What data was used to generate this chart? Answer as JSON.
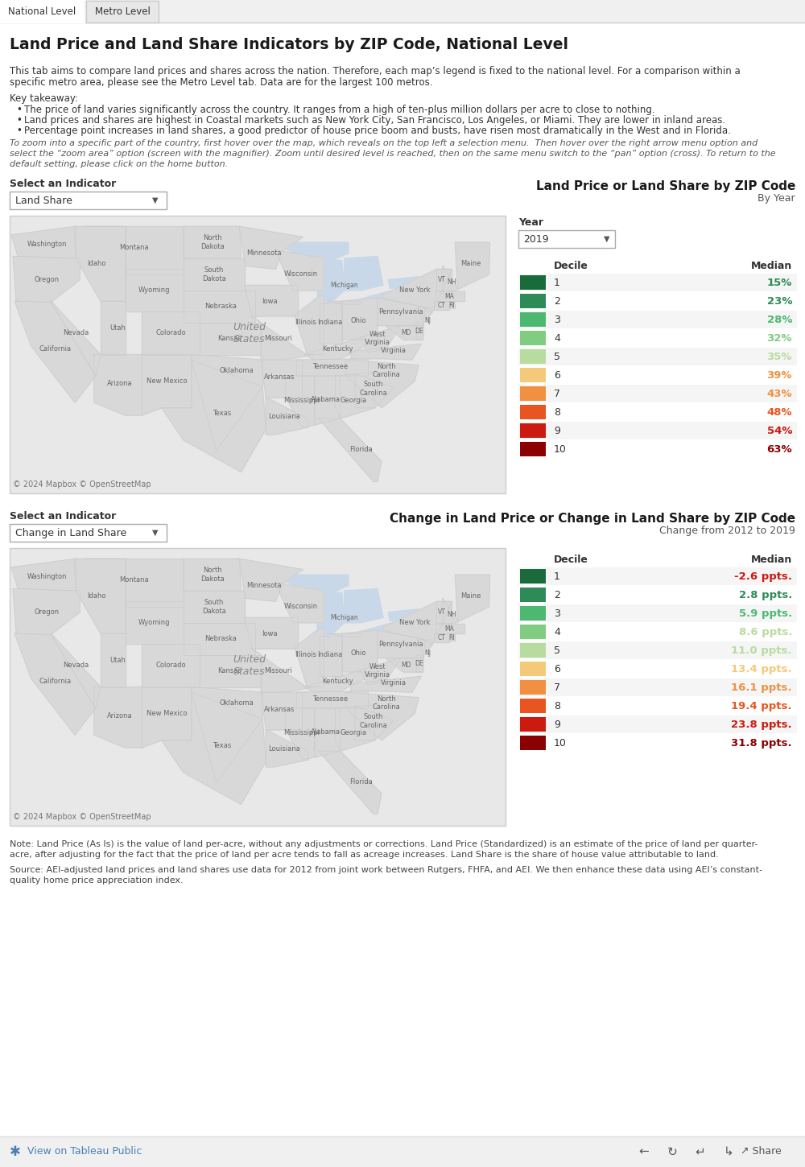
{
  "bg_color": "#f0f0f0",
  "page_bg": "#ffffff",
  "tab_active_bg": "#ffffff",
  "tab_inactive_bg": "#e8e8e8",
  "title": "Land Price and Land Share Indicators by ZIP Code, National Level",
  "tab1": "National Level",
  "tab2": "Metro Level",
  "intro_text": "This tab aims to compare land prices and shares across the nation. Therefore, each map’s legend is fixed to the national level. For a comparison within a\nspecific metro area, please see the Metro Level tab. Data are for the largest 100 metros.",
  "key_takeaway": "Key takeaway:",
  "bullets": [
    "The price of land varies significantly across the country. It ranges from a high of ten-plus million dollars per acre to close to nothing.",
    "Land prices and shares are highest in Coastal markets such as New York City, San Francisco, Los Angeles, or Miami. They are lower in inland areas.",
    "Percentage point increases in land shares, a good predictor of house price boom and busts, have risen most dramatically in the West and in Florida."
  ],
  "zoom_instruction": "To zoom into a specific part of the country, first hover over the map, which reveals on the top left a selection menu.  Then hover over the right arrow menu option and\nselect the “zoom area” option (screen with the magnifier). Zoom until desired level is reached, then on the same menu switch to the “pan” option (cross). To return to the\ndefault setting, please click on the home button.",
  "select_indicator_label": "Select an Indicator",
  "dropdown1_value": "Land Share",
  "map1_title": "Land Price or Land Share by ZIP Code",
  "map1_subtitle": "By Year",
  "year_label": "Year",
  "year_value": "2019",
  "decile_label": "Decile",
  "median_label": "Median",
  "deciles1": [
    1,
    2,
    3,
    4,
    5,
    6,
    7,
    8,
    9,
    10
  ],
  "medians1": [
    "15%",
    "23%",
    "28%",
    "32%",
    "35%",
    "39%",
    "43%",
    "48%",
    "54%",
    "63%"
  ],
  "colors1": [
    "#1a6b3c",
    "#2e8b57",
    "#4db870",
    "#80cc80",
    "#b8dca0",
    "#f5c97a",
    "#f09040",
    "#e85520",
    "#cc1a10",
    "#8b0000"
  ],
  "median_colors1": [
    "#2e8b57",
    "#2e8b57",
    "#4db870",
    "#80cc80",
    "#b8dca0",
    "#f09040",
    "#f09040",
    "#e85520",
    "#cc1a10",
    "#8b0000"
  ],
  "map1_copyright": "© 2024 Mapbox © OpenStreetMap",
  "select_indicator_label2": "Select an Indicator",
  "dropdown2_value": "Change in Land Share",
  "map2_title": "Change in Land Price or Change in Land Share by ZIP Code",
  "map2_subtitle": "Change from 2012 to 2019",
  "deciles2": [
    1,
    2,
    3,
    4,
    5,
    6,
    7,
    8,
    9,
    10
  ],
  "medians2": [
    "-2.6 ppts.",
    "2.8 ppts.",
    "5.9 ppts.",
    "8.6 ppts.",
    "11.0 ppts.",
    "13.4 ppts.",
    "16.1 ppts.",
    "19.4 ppts.",
    "23.8 ppts.",
    "31.8 ppts."
  ],
  "colors2": [
    "#1a6b3c",
    "#2e8b57",
    "#4db870",
    "#80cc80",
    "#b8dca0",
    "#f5c97a",
    "#f09040",
    "#e85520",
    "#cc1a10",
    "#8b0000"
  ],
  "median_colors2": [
    "#cc1a10",
    "#2e8b57",
    "#4db870",
    "#b8dca0",
    "#b8dca0",
    "#f5c97a",
    "#f09040",
    "#e85520",
    "#cc1a10",
    "#8b0000"
  ],
  "map2_copyright": "© 2024 Mapbox © OpenStreetMap",
  "note_text": "Note: Land Price (As Is) is the value of land per-acre, without any adjustments or corrections. Land Price (Standardized) is an estimate of the price of land per quarter-\nacre, after adjusting for the fact that the price of land per acre tends to fall as acreage increases. Land Share is the share of house value attributable to land.",
  "source_text": "Source: AEI-adjusted land prices and land shares use data for 2012 from joint work between Rutgers, FHFA, and AEI. We then enhance these data using AEI’s constant-\nquality home price appreciation index.",
  "tableau_text": "View on Tableau Public",
  "footer_bg": "#f0f0f0",
  "map_bg": "#e8e8e8",
  "map_border": "#cccccc",
  "state_line_color": "#b0b0b0",
  "state_fill_color": "#d8d8d8",
  "water_color": "#c8d8e8"
}
